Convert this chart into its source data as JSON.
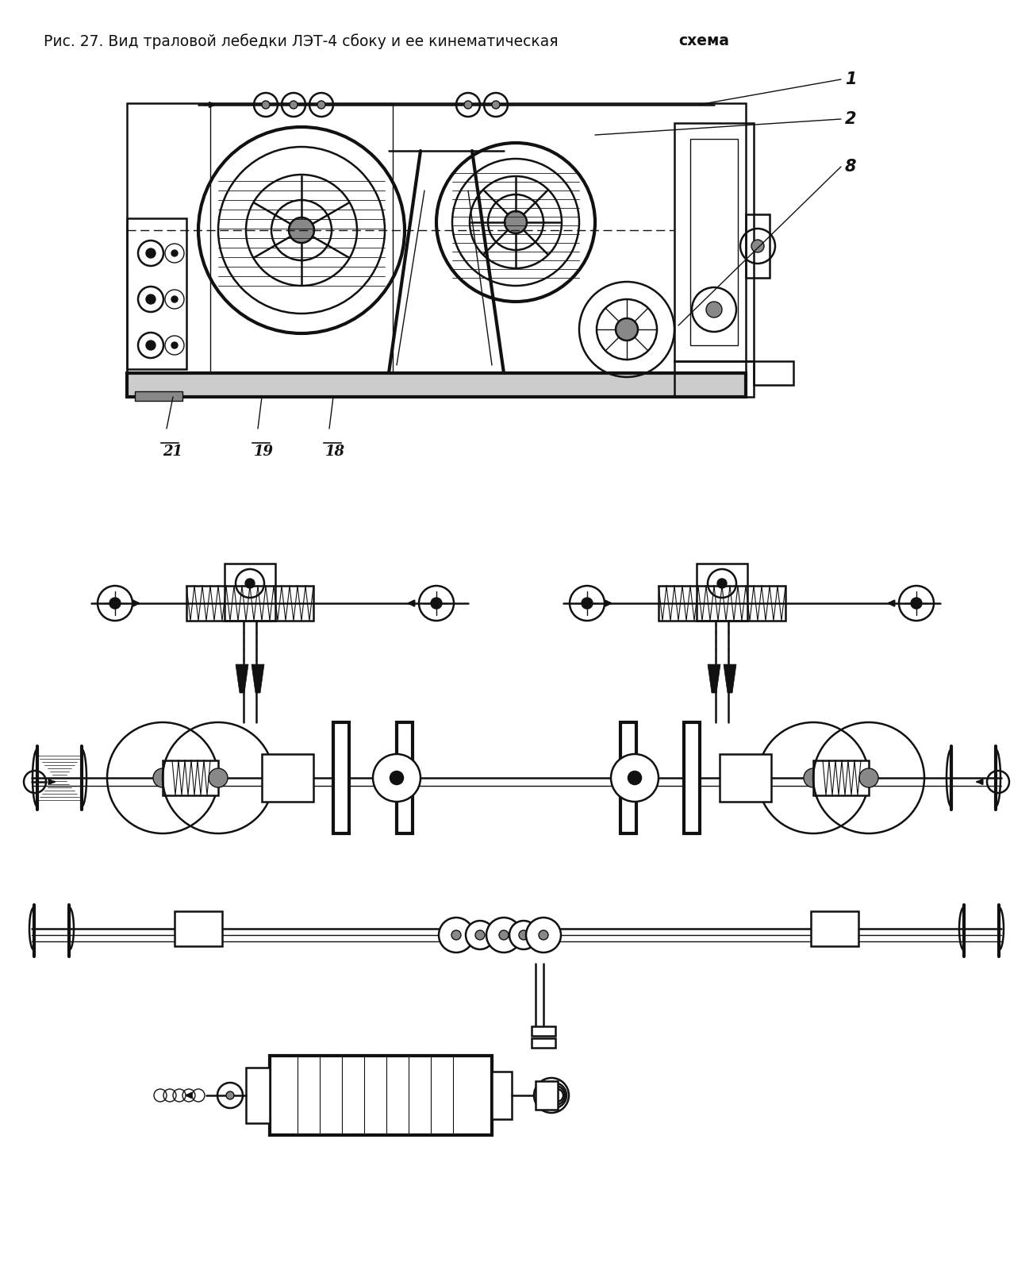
{
  "title_prefix": "Рис. 27. Вид траловой лебедки ЛЭТ-4 сбоку и ее кинематическая ",
  "title_bold": "схема",
  "bg_color": "#ffffff",
  "lc": "#111111",
  "fig_width": 13.02,
  "fig_height": 16.0,
  "dpi": 100
}
